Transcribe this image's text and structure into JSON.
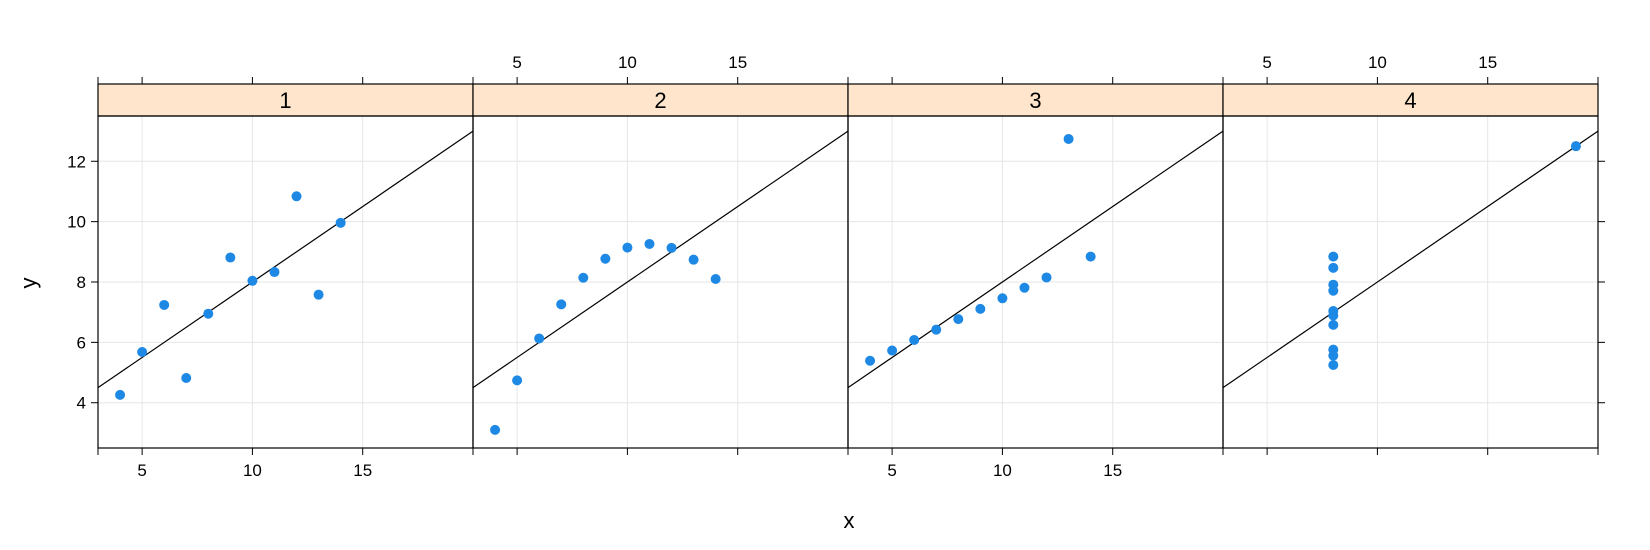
{
  "chart_data": {
    "type": "scatter",
    "xlabel": "x",
    "ylabel": "y",
    "xlim": [
      3,
      20
    ],
    "ylim": [
      2.5,
      13.5
    ],
    "x_ticks": [
      5,
      10,
      15
    ],
    "y_ticks": [
      4,
      6,
      8,
      10,
      12
    ],
    "grid": true,
    "layout": "1 row x 4 panels, shared axes, alternating tick labels (bottom/top, left/right)",
    "colors": {
      "points": "#1e88e5",
      "strip": "#ffe5cc",
      "grid": "#e6e6e6",
      "line": "#000000"
    },
    "fit_line": {
      "intercept": 3.0,
      "slope": 0.5
    },
    "panels": [
      {
        "label": "1",
        "points": [
          {
            "x": 4,
            "y": 4.26
          },
          {
            "x": 5,
            "y": 5.68
          },
          {
            "x": 6,
            "y": 7.24
          },
          {
            "x": 7,
            "y": 4.82
          },
          {
            "x": 8,
            "y": 6.95
          },
          {
            "x": 9,
            "y": 8.81
          },
          {
            "x": 10,
            "y": 8.04
          },
          {
            "x": 11,
            "y": 8.33
          },
          {
            "x": 12,
            "y": 10.84
          },
          {
            "x": 13,
            "y": 7.58
          },
          {
            "x": 14,
            "y": 9.96
          }
        ]
      },
      {
        "label": "2",
        "points": [
          {
            "x": 4,
            "y": 3.1
          },
          {
            "x": 5,
            "y": 4.74
          },
          {
            "x": 6,
            "y": 6.13
          },
          {
            "x": 7,
            "y": 7.26
          },
          {
            "x": 8,
            "y": 8.14
          },
          {
            "x": 9,
            "y": 8.77
          },
          {
            "x": 10,
            "y": 9.14
          },
          {
            "x": 11,
            "y": 9.26
          },
          {
            "x": 12,
            "y": 9.13
          },
          {
            "x": 13,
            "y": 8.74
          },
          {
            "x": 14,
            "y": 8.1
          }
        ]
      },
      {
        "label": "3",
        "points": [
          {
            "x": 4,
            "y": 5.39
          },
          {
            "x": 5,
            "y": 5.73
          },
          {
            "x": 6,
            "y": 6.08
          },
          {
            "x": 7,
            "y": 6.42
          },
          {
            "x": 8,
            "y": 6.77
          },
          {
            "x": 9,
            "y": 7.11
          },
          {
            "x": 10,
            "y": 7.46
          },
          {
            "x": 11,
            "y": 7.81
          },
          {
            "x": 12,
            "y": 8.15
          },
          {
            "x": 13,
            "y": 12.74
          },
          {
            "x": 14,
            "y": 8.84
          }
        ]
      },
      {
        "label": "4",
        "points": [
          {
            "x": 8,
            "y": 6.58
          },
          {
            "x": 8,
            "y": 5.76
          },
          {
            "x": 8,
            "y": 7.71
          },
          {
            "x": 8,
            "y": 8.84
          },
          {
            "x": 8,
            "y": 8.47
          },
          {
            "x": 8,
            "y": 7.04
          },
          {
            "x": 8,
            "y": 5.25
          },
          {
            "x": 19,
            "y": 12.5
          },
          {
            "x": 8,
            "y": 5.56
          },
          {
            "x": 8,
            "y": 7.91
          },
          {
            "x": 8,
            "y": 6.89
          }
        ]
      }
    ]
  }
}
